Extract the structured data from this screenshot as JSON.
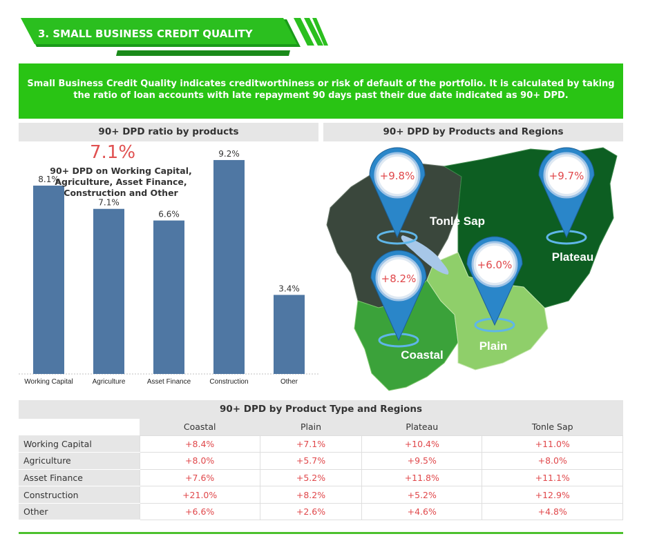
{
  "header": {
    "title": "3. SMALL BUSINESS CREDIT QUALITY"
  },
  "intro": {
    "text": "Small Business Credit Quality indicates creditworthiness or risk of default of the portfolio. It is calculated by taking the ratio of loan accounts with late repayment 90 days past their due date indicated as 90+ DPD."
  },
  "sections": {
    "products_title": "90+ DPD ratio by products",
    "regions_title": "90+ DPD by Products and Regions",
    "table_title": "90+ DPD by Product Type and Regions"
  },
  "callout": {
    "value": "7.1%",
    "text": "90+ DPD on Working Capital, Agriculture, Asset Finance, Construction and Other"
  },
  "colors": {
    "bar": "#4f77a3",
    "green": "#29c414",
    "red_text": "#e0474a"
  },
  "chart_data": [
    {
      "type": "bar",
      "title": "90+ DPD ratio by products",
      "categories": [
        "Working Capital",
        "Agriculture",
        "Asset Finance",
        "Construction",
        "Other"
      ],
      "values": [
        8.1,
        7.1,
        6.6,
        9.2,
        3.4
      ],
      "value_labels": [
        "8.1%",
        "7.1%",
        "6.6%",
        "9.2%",
        "3.4%"
      ],
      "ylim": [
        0,
        10
      ]
    },
    {
      "type": "table",
      "title": "90+ DPD by Product Type and Regions",
      "columns": [
        "Coastal",
        "Plain",
        "Plateau",
        "Tonle Sap"
      ],
      "rows": [
        {
          "label": "Working Capital",
          "values": [
            "+8.4%",
            "+7.1%",
            "+10.4%",
            "+11.0%"
          ]
        },
        {
          "label": "Agriculture",
          "values": [
            "+8.0%",
            "+5.7%",
            "+9.5%",
            "+8.0%"
          ]
        },
        {
          "label": "Asset Finance",
          "values": [
            "+7.6%",
            "+5.2%",
            "+11.8%",
            "+11.1%"
          ]
        },
        {
          "label": "Construction",
          "values": [
            "+21.0%",
            "+8.2%",
            "+5.2%",
            "+12.9%"
          ]
        },
        {
          "label": "Other",
          "values": [
            "+6.6%",
            "+2.6%",
            "+4.6%",
            "+4.8%"
          ]
        }
      ]
    }
  ],
  "map": {
    "regions": [
      {
        "name": "Tonle Sap",
        "value": "+9.8%"
      },
      {
        "name": "Plateau",
        "value": "+9.7%"
      },
      {
        "name": "Coastal",
        "value": "+8.2%"
      },
      {
        "name": "Plain",
        "value": "+6.0%"
      }
    ]
  }
}
